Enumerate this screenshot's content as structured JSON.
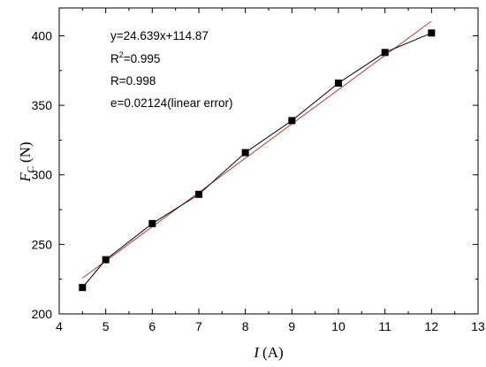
{
  "chart_data": {
    "type": "scatter",
    "xlim": [
      4,
      13
    ],
    "ylim": [
      200,
      420
    ],
    "x_ticks": [
      "4",
      "5",
      "6",
      "7",
      "8",
      "9",
      "10",
      "11",
      "12",
      "13"
    ],
    "y_ticks": [
      "200",
      "250",
      "300",
      "350",
      "400"
    ],
    "xlabel": {
      "symbol": "I",
      "unit": "(A)"
    },
    "ylabel": {
      "symbol": "F",
      "subscript": "C",
      "unit": "(N)"
    },
    "series": [
      {
        "type": "line+markers",
        "color": "#000000",
        "marker": "square",
        "x": [
          4.5,
          5,
          6,
          7,
          8,
          9,
          10,
          11,
          12
        ],
        "y": [
          219,
          239,
          265,
          286,
          316,
          339,
          366,
          388,
          402
        ]
      },
      {
        "type": "fit-line",
        "color": "#c0392b",
        "slope": 24.639,
        "intercept": 114.87,
        "x_range": [
          4.5,
          12
        ]
      }
    ],
    "annotations": {
      "equation": "y=24.639x+114.87",
      "r2_base": "R",
      "r2_sup": "2",
      "r2_value": "=0.995",
      "r": "R=0.998",
      "error": "e=0.02124(linear error)"
    },
    "grid": false,
    "legend": "none"
  }
}
